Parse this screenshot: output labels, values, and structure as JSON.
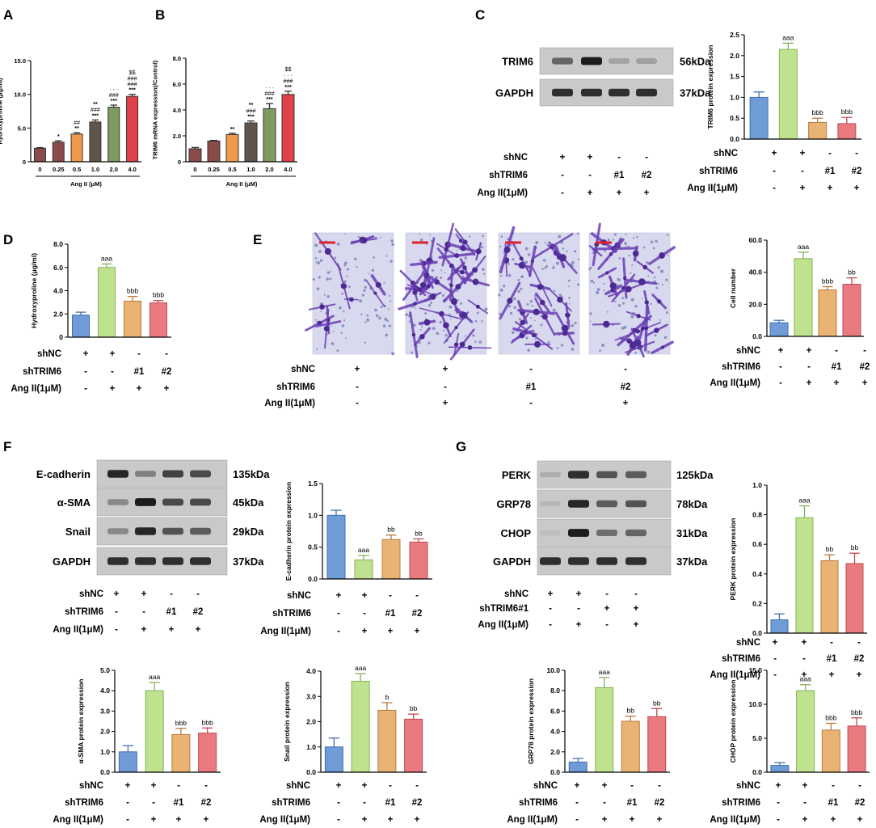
{
  "panel_letters": {
    "A": "A",
    "B": "B",
    "C": "C",
    "D": "D",
    "E": "E",
    "F": "F",
    "G": "G"
  },
  "colors": {
    "blue": "#6f9bd7",
    "green": "#bfe28e",
    "orange": "#e8b373",
    "red": "#e87a80",
    "dark": "#8a4b4b",
    "gray_brown": "#5f564b",
    "olive": "#7f9a61",
    "bright_red": "#e1414b",
    "orange_sat": "#ef9a4a",
    "scale_bar": "#e0212d"
  },
  "rowlabels": {
    "shNC": "shNC",
    "shTRIM6": "shTRIM6",
    "shTRIM6_1": "shTRIM6#1",
    "AngII": "Ang II(1μM)"
  },
  "condition_rows": {
    "shNC": [
      "+",
      "+",
      "-",
      "-"
    ],
    "shTRIM6": [
      "-",
      "-",
      "#1",
      "#2"
    ],
    "AngII": [
      "-",
      "+",
      "+",
      "+"
    ],
    "E_AngII": [
      "-",
      "+",
      "-",
      "+"
    ],
    "G_shTRIM6_1": [
      "-",
      "-",
      "+",
      "+"
    ]
  },
  "blots": {
    "C": [
      {
        "name": "TRIM6",
        "kda": "56kDa"
      },
      {
        "name": "GAPDH",
        "kda": "37kDa"
      }
    ],
    "F": [
      {
        "name": "E-cadherin",
        "kda": "135kDa"
      },
      {
        "name": "α-SMA",
        "kda": "45kDa"
      },
      {
        "name": "Snail",
        "kda": "29kDa"
      },
      {
        "name": "GAPDH",
        "kda": "37kDa"
      }
    ],
    "G": [
      {
        "name": "PERK",
        "kda": "125kDa"
      },
      {
        "name": "GRP78",
        "kda": "78kDa"
      },
      {
        "name": "CHOP",
        "kda": "31kDa"
      },
      {
        "name": "GAPDH",
        "kda": "37kDa"
      }
    ]
  },
  "chart_data": [
    {
      "id": "A",
      "type": "bar",
      "title": "",
      "ylabel": "Hydroxyproline (μg/ml)",
      "xlabel": "Ang II (μM)",
      "categories": [
        "0",
        "0.25",
        "0.5",
        "1.0",
        "2.0",
        "4.0"
      ],
      "values": [
        2.0,
        2.9,
        4.1,
        5.9,
        8.1,
        9.7
      ],
      "errors": [
        0.1,
        0.2,
        0.2,
        0.3,
        0.3,
        0.3
      ],
      "ylim": [
        0,
        15
      ],
      "yticks": [
        "0",
        "5.0",
        "10.0",
        "15.0"
      ],
      "colorKeys": [
        "dark",
        "dark",
        "orange_sat",
        "gray_brown",
        "olive",
        "bright_red"
      ],
      "sig": [
        [],
        [
          "*"
        ],
        [
          "##",
          "**"
        ],
        [
          "**",
          "###",
          "***"
        ],
        [
          "· · ·",
          "###",
          "***"
        ],
        [
          "$$",
          "###",
          "###",
          "***"
        ]
      ]
    },
    {
      "id": "B",
      "type": "bar",
      "title": "",
      "ylabel": "TRIM6 mRNA expression(/Control)",
      "xlabel": "Ang II (μM)",
      "categories": [
        "0",
        "0.25",
        "0.5",
        "1.0",
        "2.0",
        "4.0"
      ],
      "values": [
        1.0,
        1.6,
        2.1,
        3.0,
        4.1,
        5.2
      ],
      "errors": [
        0.1,
        0.05,
        0.1,
        0.15,
        0.4,
        0.25
      ],
      "ylim": [
        0,
        8
      ],
      "yticks": [
        "0",
        "2.0",
        "4.0",
        "6.0",
        "8.0"
      ],
      "colorKeys": [
        "dark",
        "dark",
        "orange_sat",
        "gray_brown",
        "olive",
        "bright_red"
      ],
      "sig": [
        [],
        [],
        [
          "**"
        ],
        [
          "**",
          "###",
          "***"
        ],
        [
          "· · ·",
          "###",
          "***"
        ],
        [
          "$$",
          "· · ·",
          "###",
          "***"
        ]
      ]
    },
    {
      "id": "C",
      "type": "bar",
      "ylabel": "TRIM6 protein expression",
      "categories": [
        "1",
        "2",
        "3",
        "4"
      ],
      "values": [
        1.0,
        2.15,
        0.4,
        0.37
      ],
      "errors": [
        0.13,
        0.15,
        0.1,
        0.15
      ],
      "ylim": [
        0,
        2.5
      ],
      "yticks": [
        "0.0",
        "0.5",
        "1.0",
        "1.5",
        "2.0",
        "2.5"
      ],
      "sig": [
        "",
        "aaa",
        "bbb",
        "bbb"
      ]
    },
    {
      "id": "D",
      "type": "bar",
      "ylabel": "Hydroxyproline (μg/ml)",
      "categories": [
        "1",
        "2",
        "3",
        "4"
      ],
      "values": [
        1.9,
        6.0,
        3.1,
        2.95
      ],
      "errors": [
        0.25,
        0.3,
        0.4,
        0.2
      ],
      "ylim": [
        0,
        8
      ],
      "yticks": [
        "0",
        "2.0",
        "4.0",
        "6.0",
        "8.0"
      ],
      "sig": [
        "",
        "aaa",
        "bbb",
        "bbb"
      ]
    },
    {
      "id": "E",
      "type": "bar",
      "ylabel": "Cell number",
      "categories": [
        "1",
        "2",
        "3",
        "4"
      ],
      "values": [
        8.5,
        48.5,
        29.0,
        32.5
      ],
      "errors": [
        1.5,
        4.0,
        2.0,
        4.0
      ],
      "ylim": [
        0,
        60
      ],
      "yticks": [
        "0.0",
        "20.0",
        "40.0",
        "60.0"
      ],
      "sig": [
        "",
        "aaa",
        "bbb",
        "bb"
      ]
    },
    {
      "id": "F1",
      "type": "bar",
      "ylabel": "E-cadherin protein expression",
      "categories": [
        "1",
        "2",
        "3",
        "4"
      ],
      "values": [
        1.0,
        0.3,
        0.62,
        0.58
      ],
      "errors": [
        0.08,
        0.07,
        0.07,
        0.05
      ],
      "ylim": [
        0,
        1.5
      ],
      "yticks": [
        "0.0",
        "0.5",
        "1.0",
        "1.5"
      ],
      "sig": [
        "",
        "aaa",
        "bb",
        "bb"
      ]
    },
    {
      "id": "F2",
      "type": "bar",
      "ylabel": "α-SMA protein expression",
      "categories": [
        "1",
        "2",
        "3",
        "4"
      ],
      "values": [
        1.0,
        4.0,
        1.85,
        1.92
      ],
      "errors": [
        0.3,
        0.4,
        0.3,
        0.25
      ],
      "ylim": [
        0,
        5
      ],
      "yticks": [
        "0.0",
        "1.0",
        "2.0",
        "3.0",
        "4.0",
        "5.0"
      ],
      "sig": [
        "",
        "aaa",
        "bbb",
        "bbb"
      ]
    },
    {
      "id": "F3",
      "type": "bar",
      "ylabel": "Snail protein expression",
      "categories": [
        "1",
        "2",
        "3",
        "4"
      ],
      "values": [
        1.0,
        3.6,
        2.45,
        2.1
      ],
      "errors": [
        0.35,
        0.3,
        0.3,
        0.2
      ],
      "ylim": [
        0,
        4
      ],
      "yticks": [
        "0.0",
        "1.0",
        "2.0",
        "3.0",
        "4.0"
      ],
      "sig": [
        "",
        "aaa",
        "b",
        "bb"
      ]
    },
    {
      "id": "G1",
      "type": "bar",
      "ylabel": "PERK protein expression",
      "categories": [
        "1",
        "2",
        "3",
        "4"
      ],
      "values": [
        0.09,
        0.78,
        0.49,
        0.47
      ],
      "errors": [
        0.04,
        0.08,
        0.04,
        0.07
      ],
      "ylim": [
        0,
        1.0
      ],
      "yticks": [
        "0.0",
        "0.2",
        "0.4",
        "0.6",
        "0.8",
        "1.0"
      ],
      "sig": [
        "",
        "aaa",
        "bb",
        "bb"
      ]
    },
    {
      "id": "G2",
      "type": "bar",
      "ylabel": "GRP78 protein expression",
      "categories": [
        "1",
        "2",
        "3",
        "4"
      ],
      "values": [
        1.0,
        8.3,
        5.0,
        5.45
      ],
      "errors": [
        0.35,
        1.0,
        0.5,
        0.8
      ],
      "ylim": [
        0,
        10
      ],
      "yticks": [
        "0.0",
        "2.0",
        "4.0",
        "6.0",
        "8.0",
        "10.0"
      ],
      "sig": [
        "",
        "aaa",
        "bb",
        "bb"
      ]
    },
    {
      "id": "G3",
      "type": "bar",
      "ylabel": "CHOP protein expression",
      "categories": [
        "1",
        "2",
        "3",
        "4"
      ],
      "values": [
        1.0,
        12.0,
        6.2,
        6.8
      ],
      "errors": [
        0.4,
        0.9,
        1.0,
        1.2
      ],
      "ylim": [
        0,
        15
      ],
      "yticks": [
        "0.0",
        "5.0",
        "10.0",
        "15.0"
      ],
      "sig": [
        "",
        "aaa",
        "bbb",
        "bbb"
      ]
    }
  ]
}
